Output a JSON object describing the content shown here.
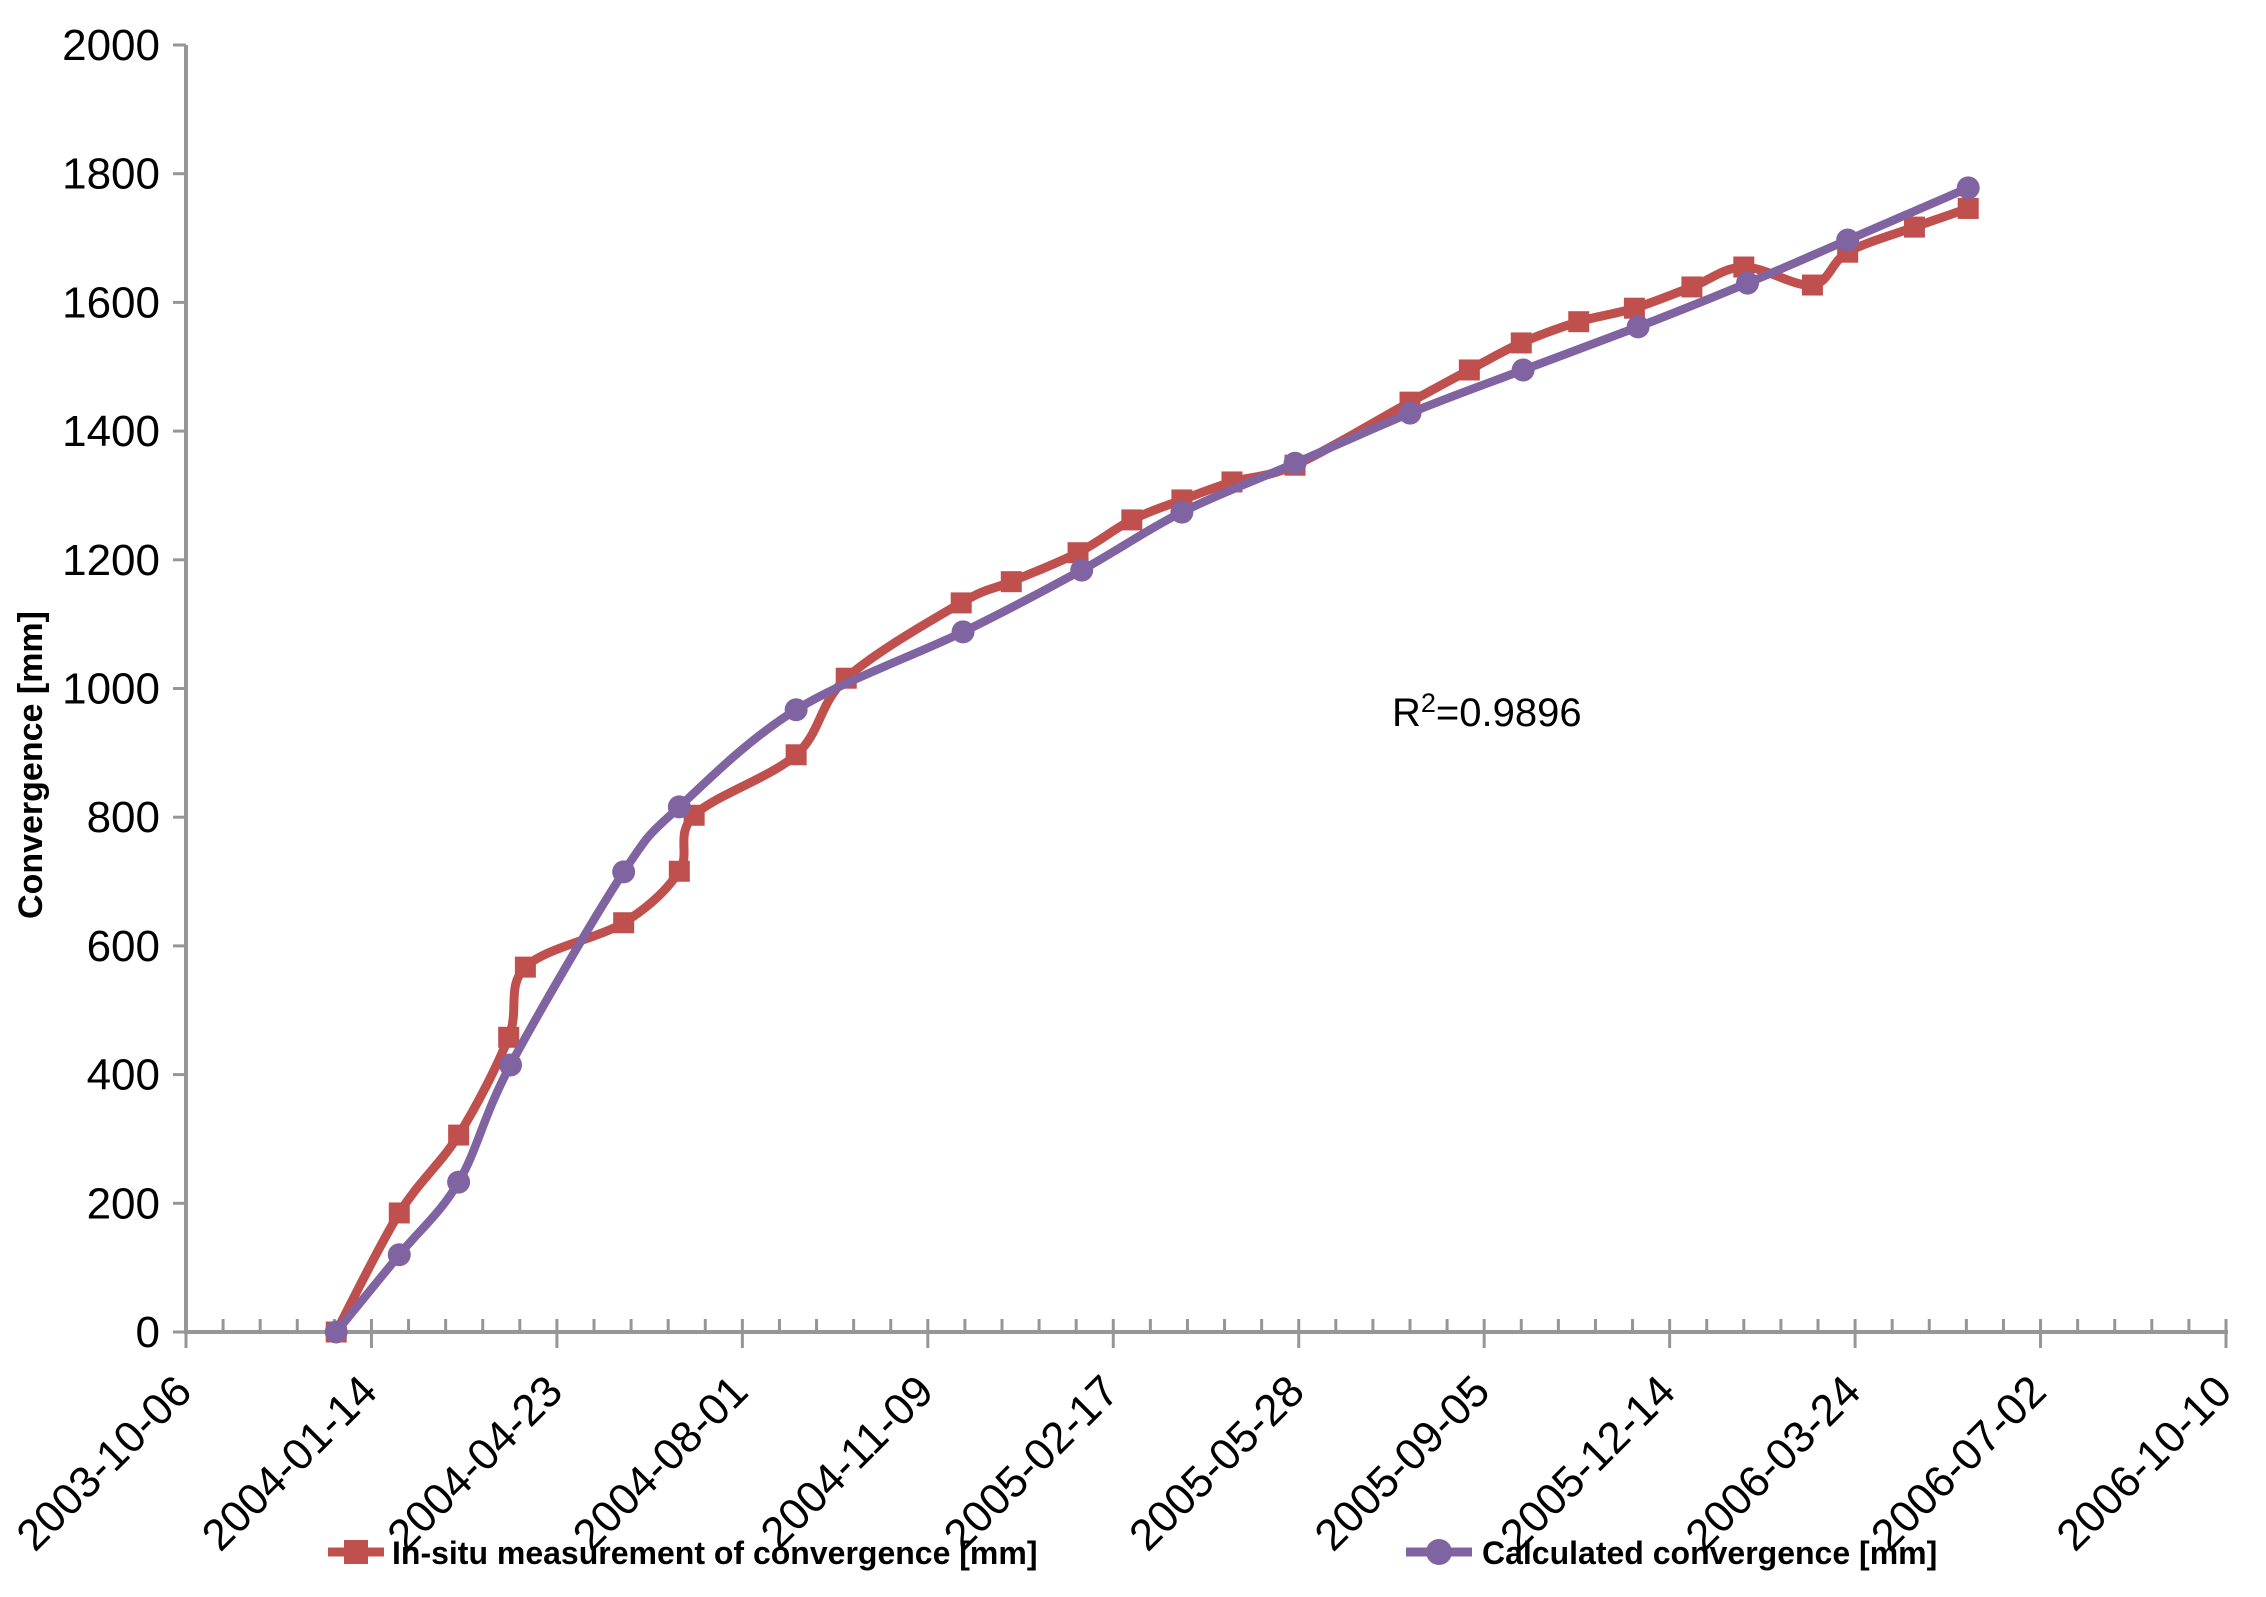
{
  "chart_data": {
    "type": "line",
    "title": "",
    "xlabel": "",
    "ylabel": "Convergence [mm]",
    "annotation": {
      "prefix": "R",
      "superscript": "2",
      "suffix": "=0.9896",
      "full_text": "R2=0.9896"
    },
    "grid": "off",
    "legend_position": "bottom",
    "axis_color": "#969696",
    "y_axis": {
      "min": 0,
      "max": 2000,
      "major_step": 200,
      "tick_labels": [
        "0",
        "200",
        "400",
        "600",
        "800",
        "1000",
        "1200",
        "1400",
        "1600",
        "1800",
        "2000"
      ]
    },
    "x_axis": {
      "unit": "date",
      "start_label": "2003-10-06",
      "end_label": "2006-10-10",
      "total_days": 1100,
      "major_tick_days": 100,
      "minor_tick_days": 20,
      "tick_labels": [
        "2003-10-06",
        "2004-01-14",
        "2004-04-23",
        "2004-08-01",
        "2004-11-09",
        "2005-02-17",
        "2005-05-28",
        "2005-09-05",
        "2005-12-14",
        "2006-03-24",
        "2006-07-02",
        "2006-10-10"
      ]
    },
    "series": [
      {
        "name": "In-situ measurement of convergence [mm]",
        "color": "#C0504D",
        "marker": "square",
        "smooth": true,
        "points": [
          {
            "day": 81,
            "value": 0
          },
          {
            "day": 115,
            "value": 185
          },
          {
            "day": 147,
            "value": 306
          },
          {
            "day": 174,
            "value": 458
          },
          {
            "day": 183,
            "value": 567
          },
          {
            "day": 236,
            "value": 636
          },
          {
            "day": 266,
            "value": 716
          },
          {
            "day": 274,
            "value": 803
          },
          {
            "day": 329,
            "value": 897
          },
          {
            "day": 356,
            "value": 1016
          },
          {
            "day": 418,
            "value": 1133
          },
          {
            "day": 445,
            "value": 1166
          },
          {
            "day": 481,
            "value": 1211
          },
          {
            "day": 510,
            "value": 1262
          },
          {
            "day": 537,
            "value": 1293
          },
          {
            "day": 564,
            "value": 1321
          },
          {
            "day": 598,
            "value": 1347
          },
          {
            "day": 660,
            "value": 1445
          },
          {
            "day": 692,
            "value": 1495
          },
          {
            "day": 720,
            "value": 1537
          },
          {
            "day": 751,
            "value": 1570
          },
          {
            "day": 781,
            "value": 1591
          },
          {
            "day": 812,
            "value": 1624
          },
          {
            "day": 840,
            "value": 1655
          },
          {
            "day": 877,
            "value": 1627
          },
          {
            "day": 896,
            "value": 1678
          },
          {
            "day": 932,
            "value": 1717
          },
          {
            "day": 961,
            "value": 1746
          }
        ]
      },
      {
        "name": "Calculated convergence [mm]",
        "color": "#8064A2",
        "marker": "circle",
        "smooth": true,
        "points": [
          {
            "day": 81,
            "value": 0
          },
          {
            "day": 115,
            "value": 120
          },
          {
            "day": 147,
            "value": 233
          },
          {
            "day": 175,
            "value": 415
          },
          {
            "day": 236,
            "value": 715
          },
          {
            "day": 266,
            "value": 816
          },
          {
            "day": 329,
            "value": 967
          },
          {
            "day": 419,
            "value": 1088
          },
          {
            "day": 483,
            "value": 1184
          },
          {
            "day": 537,
            "value": 1274
          },
          {
            "day": 598,
            "value": 1350
          },
          {
            "day": 660,
            "value": 1428
          },
          {
            "day": 721,
            "value": 1495
          },
          {
            "day": 783,
            "value": 1562
          },
          {
            "day": 842,
            "value": 1630
          },
          {
            "day": 896,
            "value": 1697
          },
          {
            "day": 961,
            "value": 1778
          }
        ]
      }
    ]
  }
}
